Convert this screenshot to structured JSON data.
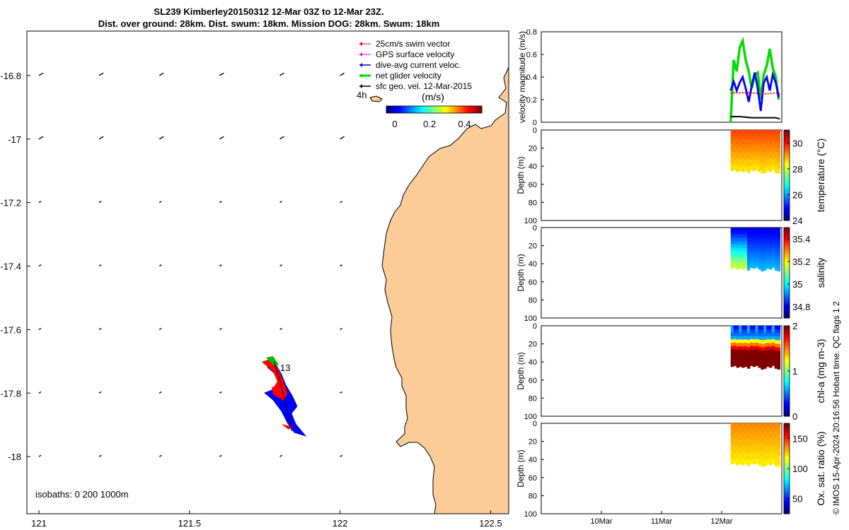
{
  "header": {
    "title_line1": "SL239 Kimberley20150312 12-Mar 03Z to 12-Mar 23Z.",
    "title_line2": "Dist. over ground: 28km. Dist. swum: 18km. Mission DOG: 28km. Swum: 18km"
  },
  "map": {
    "legend": [
      {
        "label": "25cm/s swim vector",
        "color": "#ff0000"
      },
      {
        "label": "GPS surface velocity",
        "color": "#ff00ff"
      },
      {
        "label": "dive-avg current veloc.",
        "color": "#0000ff"
      },
      {
        "label": "net glider velocity",
        "color": "#00dd00"
      },
      {
        "label": "sfc geo. vel. 12-Mar-2015",
        "color": "#000000"
      }
    ],
    "colorbar_title": "(m/s)",
    "colorbar_ticks": [
      "0",
      "0.2",
      "0.4"
    ],
    "label_4h": "4h",
    "label_13": "13",
    "isobaths_text": "isobaths: 0   200  1000m",
    "x_ticks": [
      "121",
      "121.5",
      "122",
      "122.5"
    ],
    "y_ticks": [
      "-16.8",
      "-17",
      "-17.2",
      "-17.4",
      "-17.6",
      "-17.8",
      "-18"
    ],
    "land_color": "#fbcb98"
  },
  "panels": {
    "velocity": {
      "ylabel": "velocity magnitude (m/s)",
      "ticks": [
        "0",
        "0.2",
        "0.4",
        "0.6",
        "0.8"
      ]
    },
    "depth_ylabel": "Depth (m)",
    "depth_ticks": [
      "0",
      "20",
      "40",
      "60",
      "80",
      "100"
    ],
    "x_ticks": [
      "10Mar",
      "11Mar",
      "12Mar"
    ],
    "temperature": {
      "label": "temperature (°C)",
      "ticks": [
        "24",
        "26",
        "28",
        "30"
      ]
    },
    "salinity": {
      "label": "salinity",
      "ticks": [
        "34.8",
        "35",
        "35.2",
        "35.4"
      ]
    },
    "chla": {
      "label": "chl-a (mg m-3)",
      "ticks": [
        "0",
        "1",
        "2"
      ]
    },
    "oxygen": {
      "label": "Ox. sat. ratio (%)",
      "ticks": [
        "50",
        "100",
        "150"
      ]
    }
  },
  "footer_note": "© IMOS 15-Apr-2024 20:16:56 Hobart time. QC flags 1  2",
  "chart_data": [
    {
      "type": "scatter",
      "title": "",
      "xlabel": "",
      "ylabel": "",
      "xlim": [
        120.96,
        122.56
      ],
      "ylim": [
        -18.18,
        -16.66
      ],
      "grid": false,
      "glider_track": [
        [
          121.78,
          -17.7
        ],
        [
          121.8,
          -17.76
        ],
        [
          121.82,
          -17.84
        ],
        [
          121.84,
          -17.92
        ]
      ],
      "vector_grid_lon": [
        121.0,
        121.2,
        121.4,
        121.6,
        121.8,
        122.0
      ],
      "vector_grid_lat": [
        -16.8,
        -17.0,
        -17.2,
        -17.4,
        -17.6,
        -17.8,
        -18.0
      ]
    },
    {
      "type": "line",
      "title": "",
      "xlabel": "",
      "ylabel": "velocity magnitude (m/s)",
      "xlim": [
        9.0,
        13.0
      ],
      "ylim": [
        0,
        0.8
      ],
      "x_ticks": [
        "10Mar",
        "11Mar",
        "12Mar"
      ],
      "series": [
        {
          "name": "",
          "color": "#00dd00",
          "x": [
            12.15,
            12.2,
            12.25,
            12.3,
            12.35,
            12.4,
            12.45,
            12.5,
            12.55,
            12.6,
            12.65,
            12.7,
            12.75,
            12.8,
            12.85,
            12.9,
            12.95
          ],
          "y": [
            0.0,
            0.55,
            0.45,
            0.66,
            0.72,
            0.55,
            0.45,
            0.3,
            0.42,
            0.44,
            0.2,
            0.42,
            0.5,
            0.65,
            0.48,
            0.4,
            0.2
          ]
        },
        {
          "name": "",
          "color": "#0000ff",
          "x": [
            12.15,
            12.2,
            12.25,
            12.3,
            12.35,
            12.4,
            12.45,
            12.5,
            12.55,
            12.6,
            12.65,
            12.7,
            12.75,
            12.8,
            12.85,
            12.9,
            12.95
          ],
          "y": [
            0.28,
            0.36,
            0.28,
            0.35,
            0.4,
            0.3,
            0.18,
            0.32,
            0.44,
            0.3,
            0.1,
            0.35,
            0.4,
            0.28,
            0.42,
            0.35,
            0.22
          ]
        },
        {
          "name": "",
          "color": "#ff0000",
          "x": [
            12.15,
            12.3,
            12.5,
            12.7,
            12.9,
            12.97
          ],
          "y": [
            0.26,
            0.26,
            0.26,
            0.25,
            0.26,
            0.25
          ]
        },
        {
          "name": "",
          "color": "#000000",
          "x": [
            12.15,
            12.3,
            12.5,
            12.7,
            12.9,
            12.97
          ],
          "y": [
            0.05,
            0.05,
            0.04,
            0.04,
            0.04,
            0.03
          ]
        }
      ]
    },
    {
      "type": "heatmap",
      "ylabel": "Depth (m)",
      "colorbar_label": "temperature (°C)",
      "xlim": [
        9.0,
        13.0
      ],
      "ylim": [
        100,
        0
      ],
      "clim": [
        24,
        31
      ],
      "profiles": {
        "x_start": 12.15,
        "x_end": 12.97,
        "count": 18,
        "max_depth": [
          45,
          44,
          46,
          45,
          46,
          45,
          47,
          44,
          45,
          44,
          46,
          48,
          47,
          45,
          46,
          44,
          47,
          48
        ],
        "surface": 29.6,
        "deep": 28.5
      }
    },
    {
      "type": "heatmap",
      "ylabel": "Depth (m)",
      "colorbar_label": "salinity",
      "xlim": [
        9.0,
        13.0
      ],
      "ylim": [
        100,
        0
      ],
      "clim": [
        34.7,
        35.5
      ],
      "profiles": {
        "x_start": 12.15,
        "x_end": 12.97,
        "count": 18,
        "max_depth": [
          45,
          44,
          46,
          45,
          46,
          45,
          47,
          44,
          45,
          44,
          46,
          48,
          47,
          45,
          46,
          44,
          47,
          48
        ],
        "surface": 34.78,
        "deep": 35.05
      }
    },
    {
      "type": "heatmap",
      "ylabel": "Depth (m)",
      "colorbar_label": "chl-a (mg m-3)",
      "xlim": [
        9.0,
        13.0
      ],
      "ylim": [
        100,
        0
      ],
      "clim": [
        0,
        2
      ],
      "profiles": {
        "x_start": 12.15,
        "x_end": 12.97,
        "count": 18,
        "max_depth": [
          45,
          44,
          46,
          45,
          46,
          45,
          47,
          44,
          45,
          44,
          46,
          48,
          47,
          45,
          46,
          44,
          47,
          48
        ],
        "surface": 0.25,
        "deep": 2.0
      }
    },
    {
      "type": "heatmap",
      "ylabel": "Depth (m)",
      "colorbar_label": "Ox. sat. ratio (%)",
      "xlim": [
        9.0,
        13.0
      ],
      "ylim": [
        100,
        0
      ],
      "clim": [
        25,
        175
      ],
      "profiles": {
        "x_start": 12.15,
        "x_end": 12.97,
        "count": 18,
        "max_depth": [
          45,
          44,
          46,
          45,
          46,
          45,
          47,
          44,
          45,
          44,
          46,
          48,
          47,
          45,
          46,
          44,
          47,
          48
        ],
        "surface": 135,
        "deep": 120
      }
    }
  ]
}
